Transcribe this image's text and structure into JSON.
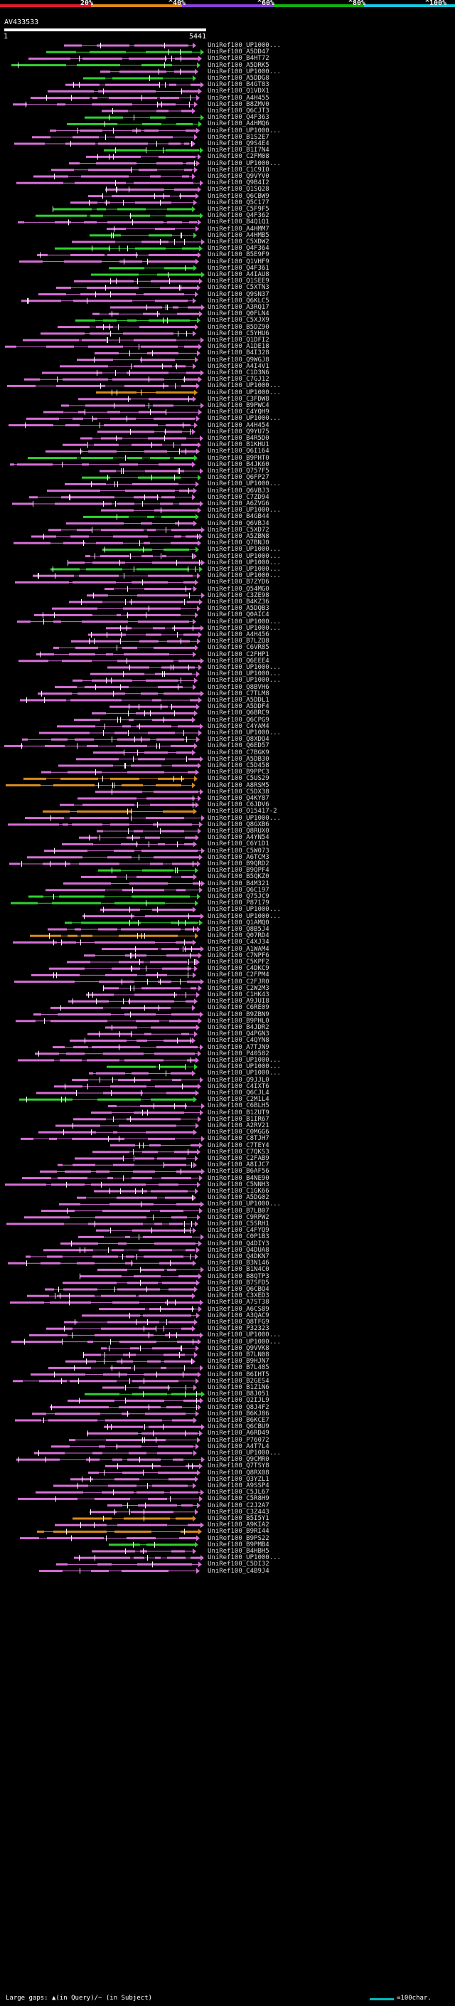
{
  "colors": {
    "background": "#000000",
    "magenta": "#d86fd8",
    "green": "#2fd22f",
    "orange": "#d98b1e",
    "white": "#ffffff",
    "legend": [
      "#e0192c",
      "#e08a1a",
      "#8b3fd9",
      "#12b012",
      "#18c9e0"
    ]
  },
  "legend": {
    "labels": [
      "20%",
      "^40%",
      "^60%",
      "^80%",
      "^100%"
    ]
  },
  "query": {
    "name": "AV433533",
    "start": "1",
    "end": "5441"
  },
  "footer": {
    "gap_text": "Large gaps: ▲(in Query)/~ (in Subject)",
    "scale_text": "=100char."
  },
  "hits": [
    {
      "label": "UniRef100_UP1000...",
      "color": "magenta"
    },
    {
      "label": "UniRef100_A5DD47",
      "color": "green"
    },
    {
      "label": "UniRef100_B4HT72",
      "color": "magenta"
    },
    {
      "label": "UniRef100_A5DRK5",
      "color": "green"
    },
    {
      "label": "UniRef100_UP1000...",
      "color": "magenta"
    },
    {
      "label": "UniRef100_A5DDG8",
      "color": "green"
    },
    {
      "label": "UniRef100_B4GT83",
      "color": "magenta"
    },
    {
      "label": "UniRef100_Q1VDX1",
      "color": "magenta"
    },
    {
      "label": "UniRef100_A4H455",
      "color": "magenta"
    },
    {
      "label": "UniRef100_B8ZMV0",
      "color": "magenta"
    },
    {
      "label": "UniRef100_Q6CJT3",
      "color": "magenta"
    },
    {
      "label": "UniRef100_Q4F363",
      "color": "green"
    },
    {
      "label": "UniRef100_A4HMQ6",
      "color": "green"
    },
    {
      "label": "UniRef100_UP1000...",
      "color": "magenta"
    },
    {
      "label": "UniRef100_B1S2E7",
      "color": "magenta"
    },
    {
      "label": "UniRef100_Q9S4E4",
      "color": "magenta"
    },
    {
      "label": "UniRef100_B1I7N4",
      "color": "green"
    },
    {
      "label": "UniRef100_C2FM08",
      "color": "magenta"
    },
    {
      "label": "UniRef100_UP1000...",
      "color": "magenta"
    },
    {
      "label": "UniRef100_C1C9I0",
      "color": "magenta"
    },
    {
      "label": "UniRef100_Q9VYV0",
      "color": "magenta"
    },
    {
      "label": "UniRef100_Q9B4I2",
      "color": "magenta"
    },
    {
      "label": "UniRef100_Q1SQ28",
      "color": "magenta"
    },
    {
      "label": "UniRef100_Q6CBW9",
      "color": "magenta"
    },
    {
      "label": "UniRef100_Q5C177",
      "color": "magenta"
    },
    {
      "label": "UniRef100_C5F9F5",
      "color": "green"
    },
    {
      "label": "UniRef100_Q4F362",
      "color": "green"
    },
    {
      "label": "UniRef100_B4Q1Q1",
      "color": "magenta"
    },
    {
      "label": "UniRef100_A4HMM7",
      "color": "magenta"
    },
    {
      "label": "UniRef100_A4HMB5",
      "color": "green"
    },
    {
      "label": "UniRef100_C5XDW2",
      "color": "magenta"
    },
    {
      "label": "UniRef100_Q4F364",
      "color": "green"
    },
    {
      "label": "UniRef100_B5E9F9",
      "color": "magenta"
    },
    {
      "label": "UniRef100_Q1VHF9",
      "color": "magenta"
    },
    {
      "label": "UniRef100_Q4F361",
      "color": "green"
    },
    {
      "label": "UniRef100_A4IAU8",
      "color": "green"
    },
    {
      "label": "UniRef100_Q1SEE9",
      "color": "magenta"
    },
    {
      "label": "UniRef100_C5XTN3",
      "color": "magenta"
    },
    {
      "label": "UniRef100_Q9SN37",
      "color": "magenta"
    },
    {
      "label": "UniRef100_Q6KLC5",
      "color": "magenta"
    },
    {
      "label": "UniRef100_A3RQ17",
      "color": "magenta"
    },
    {
      "label": "UniRef100_Q0FLN4",
      "color": "magenta"
    },
    {
      "label": "UniRef100_C5XJX9",
      "color": "green"
    },
    {
      "label": "UniRef100_B5DZ90",
      "color": "magenta"
    },
    {
      "label": "UniRef100_C5YHU6",
      "color": "magenta"
    },
    {
      "label": "UniRef100_Q1DFI2",
      "color": "magenta"
    },
    {
      "label": "UniRef100_A1DE18",
      "color": "magenta"
    },
    {
      "label": "UniRef100_B4I328",
      "color": "magenta"
    },
    {
      "label": "UniRef100_Q9WGJ8",
      "color": "magenta"
    },
    {
      "label": "UniRef100_A4I4V1",
      "color": "magenta"
    },
    {
      "label": "UniRef100_C1D3N6",
      "color": "magenta"
    },
    {
      "label": "UniRef100_C7GJ12",
      "color": "magenta"
    },
    {
      "label": "UniRef100_UP1000...",
      "color": "magenta"
    },
    {
      "label": "UniRef100_UP1000...",
      "color": "orange"
    },
    {
      "label": "UniRef100_C3FDW8",
      "color": "magenta"
    },
    {
      "label": "UniRef100_B9PWC4",
      "color": "magenta"
    },
    {
      "label": "UniRef100_C4YQH9",
      "color": "magenta"
    },
    {
      "label": "UniRef100_UP1000...",
      "color": "magenta"
    },
    {
      "label": "UniRef100_A4H454",
      "color": "magenta"
    },
    {
      "label": "UniRef100_Q9YU75",
      "color": "magenta"
    },
    {
      "label": "UniRef100_B4R5D0",
      "color": "magenta"
    },
    {
      "label": "UniRef100_B1KHU1",
      "color": "magenta"
    },
    {
      "label": "UniRef100_Q6I164",
      "color": "magenta"
    },
    {
      "label": "UniRef100_B9PHT0",
      "color": "green"
    },
    {
      "label": "UniRef100_B4JK60",
      "color": "magenta"
    },
    {
      "label": "UniRef100_Q757F5",
      "color": "magenta"
    },
    {
      "label": "UniRef100_Q6FP27",
      "color": "green"
    },
    {
      "label": "UniRef100_UP1000...",
      "color": "magenta"
    },
    {
      "label": "UniRef100_Q6VBJ3",
      "color": "magenta"
    },
    {
      "label": "UniRef100_C7ZD94",
      "color": "magenta"
    },
    {
      "label": "UniRef100_A6ZVG6",
      "color": "magenta"
    },
    {
      "label": "UniRef100_UP1000...",
      "color": "magenta"
    },
    {
      "label": "UniRef100_B4GB44",
      "color": "green"
    },
    {
      "label": "UniRef100_Q6VBJ4",
      "color": "magenta"
    },
    {
      "label": "UniRef100_C5XD72",
      "color": "magenta"
    },
    {
      "label": "UniRef100_A5ZBN8",
      "color": "magenta"
    },
    {
      "label": "UniRef100_Q7BNJ0",
      "color": "magenta"
    },
    {
      "label": "UniRef100_UP1000...",
      "color": "green"
    },
    {
      "label": "UniRef100_UP1000...",
      "color": "magenta"
    },
    {
      "label": "UniRef100_UP1000...",
      "color": "magenta"
    },
    {
      "label": "UniRef100_UP1000...",
      "color": "green"
    },
    {
      "label": "UniRef100_UP1000...",
      "color": "magenta"
    },
    {
      "label": "UniRef100_B7ZYD6",
      "color": "magenta"
    },
    {
      "label": "UniRef100_Q54MG0",
      "color": "magenta"
    },
    {
      "label": "UniRef100_C3ZE98",
      "color": "magenta"
    },
    {
      "label": "UniRef100_B4KZ36",
      "color": "magenta"
    },
    {
      "label": "UniRef100_A5DQB3",
      "color": "magenta"
    },
    {
      "label": "UniRef100_Q0AIC4",
      "color": "magenta"
    },
    {
      "label": "UniRef100_UP1000...",
      "color": "magenta"
    },
    {
      "label": "UniRef100_UP1000...",
      "color": "magenta"
    },
    {
      "label": "UniRef100_A4H456",
      "color": "magenta"
    },
    {
      "label": "UniRef100_B7LZQ8",
      "color": "magenta"
    },
    {
      "label": "UniRef100_C6VR85",
      "color": "magenta"
    },
    {
      "label": "UniRef100_C2FHP1",
      "color": "magenta"
    },
    {
      "label": "UniRef100_Q6EEE4",
      "color": "magenta"
    },
    {
      "label": "UniRef100_UP1000...",
      "color": "magenta"
    },
    {
      "label": "UniRef100_UP1000...",
      "color": "magenta"
    },
    {
      "label": "UniRef100_UP1000...",
      "color": "magenta"
    },
    {
      "label": "UniRef100_Q8BVH6",
      "color": "magenta"
    },
    {
      "label": "UniRef100_C7TLM8",
      "color": "magenta"
    },
    {
      "label": "UniRef100_A5DDL1",
      "color": "magenta"
    },
    {
      "label": "UniRef100_A5DDF4",
      "color": "magenta"
    },
    {
      "label": "UniRef100_Q6BRC9",
      "color": "magenta"
    },
    {
      "label": "UniRef100_Q6CPG9",
      "color": "magenta"
    },
    {
      "label": "UniRef100_C4YAM4",
      "color": "magenta"
    },
    {
      "label": "UniRef100_UP1000...",
      "color": "magenta"
    },
    {
      "label": "UniRef100_Q8XDQ4",
      "color": "magenta"
    },
    {
      "label": "UniRef100_Q6ED57",
      "color": "magenta"
    },
    {
      "label": "UniRef100_C7BGK9",
      "color": "magenta"
    },
    {
      "label": "UniRef100_A5DB30",
      "color": "magenta"
    },
    {
      "label": "UniRef100_C5D458",
      "color": "magenta"
    },
    {
      "label": "UniRef100_B9PPC3",
      "color": "magenta"
    },
    {
      "label": "UniRef100_C5US29",
      "color": "orange"
    },
    {
      "label": "UniRef100_A8RSM5",
      "color": "orange"
    },
    {
      "label": "UniRef100_C5DX38",
      "color": "magenta"
    },
    {
      "label": "UniRef100_Q4KY87",
      "color": "magenta"
    },
    {
      "label": "UniRef100_C6JDV6",
      "color": "magenta"
    },
    {
      "label": "UniRef100_O15417-2",
      "color": "orange"
    },
    {
      "label": "UniRef100_UP1000...",
      "color": "magenta"
    },
    {
      "label": "UniRef100_Q8GXB6",
      "color": "magenta"
    },
    {
      "label": "UniRef100_Q8RUX0",
      "color": "magenta"
    },
    {
      "label": "UniRef100_A4YN54",
      "color": "magenta"
    },
    {
      "label": "UniRef100_C6Y1D1",
      "color": "magenta"
    },
    {
      "label": "UniRef100_C5W073",
      "color": "magenta"
    },
    {
      "label": "UniRef100_A6TCM3",
      "color": "magenta"
    },
    {
      "label": "UniRef100_B9QRD2",
      "color": "magenta"
    },
    {
      "label": "UniRef100_B9QPF4",
      "color": "green"
    },
    {
      "label": "UniRef100_B5QKZ0",
      "color": "magenta"
    },
    {
      "label": "UniRef100_B4M321",
      "color": "magenta"
    },
    {
      "label": "UniRef100_Q6C197",
      "color": "magenta"
    },
    {
      "label": "UniRef100_Q75JC9",
      "color": "green"
    },
    {
      "label": "UniRef100_P87179",
      "color": "green"
    },
    {
      "label": "UniRef100_UP1000...",
      "color": "magenta"
    },
    {
      "label": "UniRef100_UP1000...",
      "color": "magenta"
    },
    {
      "label": "UniRef100_Q1AMQ0",
      "color": "green"
    },
    {
      "label": "UniRef100_Q8B5J4",
      "color": "magenta"
    },
    {
      "label": "UniRef100_Q07RD4",
      "color": "orange"
    },
    {
      "label": "UniRef100_C4XJ34",
      "color": "magenta"
    },
    {
      "label": "UniRef100_A1WAM4",
      "color": "magenta"
    },
    {
      "label": "UniRef100_C7NPF6",
      "color": "magenta"
    },
    {
      "label": "UniRef100_C5KPF2",
      "color": "magenta"
    },
    {
      "label": "UniRef100_C4DKC9",
      "color": "magenta"
    },
    {
      "label": "UniRef100_C2FPM4",
      "color": "magenta"
    },
    {
      "label": "UniRef100_C2FJR0",
      "color": "magenta"
    },
    {
      "label": "UniRef100_C2W2M3",
      "color": "magenta"
    },
    {
      "label": "UniRef100_C1HK43",
      "color": "magenta"
    },
    {
      "label": "UniRef100_A9JUI8",
      "color": "magenta"
    },
    {
      "label": "UniRef100_C6RE09",
      "color": "magenta"
    },
    {
      "label": "UniRef100_B9ZBN9",
      "color": "magenta"
    },
    {
      "label": "UniRef100_B9PHL0",
      "color": "magenta"
    },
    {
      "label": "UniRef100_B4JDR2",
      "color": "magenta"
    },
    {
      "label": "UniRef100_Q4PGN3",
      "color": "magenta"
    },
    {
      "label": "UniRef100_C4QYN8",
      "color": "magenta"
    },
    {
      "label": "UniRef100_A7TJN9",
      "color": "magenta"
    },
    {
      "label": "UniRef100_P40582",
      "color": "magenta"
    },
    {
      "label": "UniRef100_UP1000...",
      "color": "magenta"
    },
    {
      "label": "UniRef100_UP1000...",
      "color": "green"
    },
    {
      "label": "UniRef100_UP1000...",
      "color": "magenta"
    },
    {
      "label": "UniRef100_Q9JJL0",
      "color": "magenta"
    },
    {
      "label": "UniRef100_C4IXT6",
      "color": "magenta"
    },
    {
      "label": "UniRef100_Q6CJL4",
      "color": "magenta"
    },
    {
      "label": "UniRef100_C2M1L4",
      "color": "green"
    },
    {
      "label": "UniRef100_C6BLH5",
      "color": "magenta"
    },
    {
      "label": "UniRef100_B1ZUT9",
      "color": "magenta"
    },
    {
      "label": "UniRef100_B1IR67",
      "color": "magenta"
    },
    {
      "label": "UniRef100_A2RV21",
      "color": "magenta"
    },
    {
      "label": "UniRef100_C0MGG6",
      "color": "magenta"
    },
    {
      "label": "UniRef100_C8TJH7",
      "color": "magenta"
    },
    {
      "label": "UniRef100_C7TEY4",
      "color": "magenta"
    },
    {
      "label": "UniRef100_C7QKS3",
      "color": "magenta"
    },
    {
      "label": "UniRef100_C2FAB9",
      "color": "magenta"
    },
    {
      "label": "UniRef100_A8IJC7",
      "color": "magenta"
    },
    {
      "label": "UniRef100_B6AF56",
      "color": "magenta"
    },
    {
      "label": "UniRef100_B4NE90",
      "color": "magenta"
    },
    {
      "label": "UniRef100_C5NNH3",
      "color": "magenta"
    },
    {
      "label": "UniRef100_C1GK66",
      "color": "magenta"
    },
    {
      "label": "UniRef100_A5DG02",
      "color": "magenta"
    },
    {
      "label": "UniRef100_UP1000...",
      "color": "magenta"
    },
    {
      "label": "UniRef100_B7LB07",
      "color": "magenta"
    },
    {
      "label": "UniRef100_C9RPW2",
      "color": "magenta"
    },
    {
      "label": "UniRef100_C5SRH1",
      "color": "magenta"
    },
    {
      "label": "UniRef100_C4FYQ9",
      "color": "magenta"
    },
    {
      "label": "UniRef100_C0P1B3",
      "color": "magenta"
    },
    {
      "label": "UniRef100_Q4DIY3",
      "color": "magenta"
    },
    {
      "label": "UniRef100_Q4DUA8",
      "color": "magenta"
    },
    {
      "label": "UniRef100_Q4DKN7",
      "color": "magenta"
    },
    {
      "label": "UniRef100_B3N146",
      "color": "magenta"
    },
    {
      "label": "UniRef100_B1N4C0",
      "color": "magenta"
    },
    {
      "label": "UniRef100_B8QTP3",
      "color": "magenta"
    },
    {
      "label": "UniRef100_B7SFD5",
      "color": "magenta"
    },
    {
      "label": "UniRef100_Q6CBQ4",
      "color": "magenta"
    },
    {
      "label": "UniRef100_C3XED3",
      "color": "magenta"
    },
    {
      "label": "UniRef100_A7ST38",
      "color": "magenta"
    },
    {
      "label": "UniRef100_A6CS89",
      "color": "magenta"
    },
    {
      "label": "UniRef100_A3QAC9",
      "color": "magenta"
    },
    {
      "label": "UniRef100_Q8TFG9",
      "color": "magenta"
    },
    {
      "label": "UniRef100_P32323",
      "color": "magenta"
    },
    {
      "label": "UniRef100_UP1000...",
      "color": "magenta"
    },
    {
      "label": "UniRef100_UP1000...",
      "color": "magenta"
    },
    {
      "label": "UniRef100_Q9VVK8",
      "color": "magenta"
    },
    {
      "label": "UniRef100_B7LN08",
      "color": "magenta"
    },
    {
      "label": "UniRef100_B9HJN7",
      "color": "magenta"
    },
    {
      "label": "UniRef100_B7L485",
      "color": "magenta"
    },
    {
      "label": "UniRef100_B6IHT5",
      "color": "magenta"
    },
    {
      "label": "UniRef100_B2GES4",
      "color": "magenta"
    },
    {
      "label": "UniRef100_B1Z1N6",
      "color": "magenta"
    },
    {
      "label": "UniRef100_B8J051",
      "color": "green"
    },
    {
      "label": "UniRef100_Q2IJL9",
      "color": "magenta"
    },
    {
      "label": "UniRef100_Q8J4F2",
      "color": "magenta"
    },
    {
      "label": "UniRef100_B6KJ86",
      "color": "magenta"
    },
    {
      "label": "UniRef100_B6KCE7",
      "color": "magenta"
    },
    {
      "label": "UniRef100_Q6CBU9",
      "color": "magenta"
    },
    {
      "label": "UniRef100_A6RD49",
      "color": "magenta"
    },
    {
      "label": "UniRef100_P76072",
      "color": "magenta"
    },
    {
      "label": "UniRef100_A4T7L4",
      "color": "magenta"
    },
    {
      "label": "UniRef100_UP1000...",
      "color": "magenta"
    },
    {
      "label": "UniRef100_Q9CMR0",
      "color": "magenta"
    },
    {
      "label": "UniRef100_Q7TSY8",
      "color": "magenta"
    },
    {
      "label": "UniRef100_Q8RX08",
      "color": "magenta"
    },
    {
      "label": "UniRef100_Q3YZL1",
      "color": "magenta"
    },
    {
      "label": "UniRef100_A9SSP4",
      "color": "magenta"
    },
    {
      "label": "UniRef100_C5JL67",
      "color": "magenta"
    },
    {
      "label": "UniRef100_C5R8H9",
      "color": "magenta"
    },
    {
      "label": "UniRef100_C2J2A7",
      "color": "magenta"
    },
    {
      "label": "UniRef100_C3Z443",
      "color": "magenta"
    },
    {
      "label": "UniRef100_B5I5Y1",
      "color": "orange"
    },
    {
      "label": "UniRef100_A9KIA2",
      "color": "magenta"
    },
    {
      "label": "UniRef100_B9RI44",
      "color": "orange"
    },
    {
      "label": "UniRef100_B9PS22",
      "color": "magenta"
    },
    {
      "label": "UniRef100_B9PMB4",
      "color": "green"
    },
    {
      "label": "UniRef100_B4HBH5",
      "color": "magenta"
    },
    {
      "label": "UniRef100_UP1000...",
      "color": "magenta"
    },
    {
      "label": "UniRef100_C5DI32",
      "color": "magenta"
    },
    {
      "label": "UniRef100_C4B9J4",
      "color": "magenta"
    }
  ]
}
